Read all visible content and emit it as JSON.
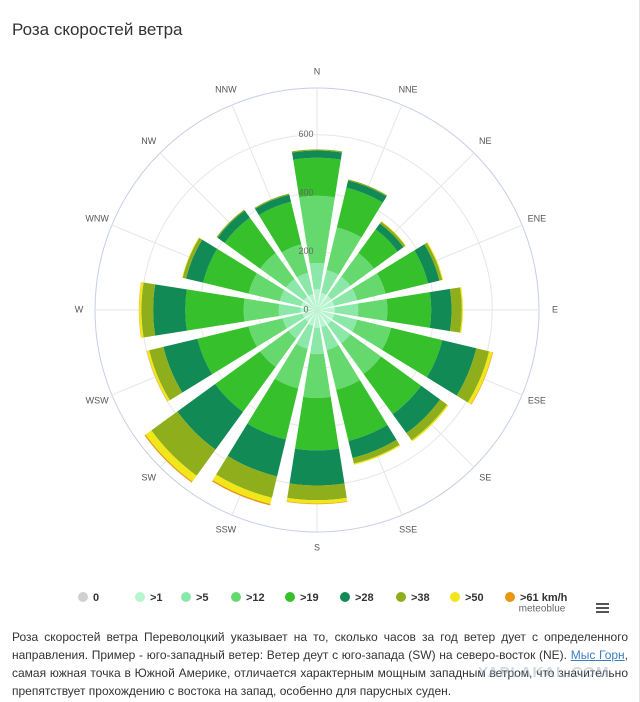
{
  "title": "Роза скоростей ветра",
  "chart_data": {
    "type": "windrose",
    "categories": [
      "N",
      "NNE",
      "NE",
      "ENE",
      "E",
      "ESE",
      "SE",
      "SSE",
      "S",
      "SSW",
      "SW",
      "WSW",
      "W",
      "WNW",
      "NW",
      "NNW"
    ],
    "series": [
      {
        "name": "0",
        "color": "#d0d0d0",
        "values": [
          1,
          1,
          1,
          1,
          1,
          1,
          1,
          1,
          1,
          1,
          1,
          1,
          1,
          1,
          1,
          1
        ]
      },
      {
        "name": ">1",
        "color": "#b6f5cd",
        "values": [
          70,
          60,
          60,
          60,
          60,
          60,
          60,
          60,
          60,
          55,
          50,
          50,
          55,
          55,
          55,
          55
        ]
      },
      {
        "name": ">5",
        "color": "#8ce8a8",
        "values": [
          90,
          80,
          80,
          80,
          80,
          80,
          80,
          80,
          90,
          80,
          70,
          70,
          75,
          75,
          75,
          75
        ]
      },
      {
        "name": ">12",
        "color": "#66d96e",
        "values": [
          230,
          150,
          100,
          100,
          100,
          120,
          130,
          140,
          150,
          140,
          120,
          120,
          120,
          110,
          110,
          100
        ]
      },
      {
        "name": ">19",
        "color": "#36c02c",
        "values": [
          130,
          140,
          100,
          150,
          150,
          180,
          170,
          180,
          180,
          180,
          190,
          180,
          200,
          160,
          150,
          150
        ]
      },
      {
        "name": ">28",
        "color": "#128a56",
        "values": [
          25,
          25,
          25,
          40,
          70,
          120,
          80,
          60,
          120,
          130,
          160,
          120,
          110,
          60,
          30,
          25
        ]
      },
      {
        "name": ">38",
        "color": "#8fae1b",
        "values": [
          4,
          4,
          8,
          10,
          35,
          45,
          30,
          20,
          50,
          75,
          110,
          50,
          40,
          12,
          4,
          4
        ]
      },
      {
        "name": ">50",
        "color": "#f0e61a",
        "values": [
          0,
          0,
          2,
          3,
          4,
          12,
          5,
          4,
          12,
          22,
          25,
          8,
          8,
          2,
          0,
          0
        ]
      },
      {
        "name": ">61 km/h",
        "color": "#e8980f",
        "values": [
          0,
          0,
          0,
          0,
          0,
          2,
          0,
          0,
          2,
          5,
          4,
          1,
          1,
          0,
          0,
          0
        ]
      }
    ],
    "ylim": [
      0,
      760
    ],
    "yticks": [
      0,
      200,
      400,
      600
    ],
    "grid": true
  },
  "credit": "meteoblue",
  "description": {
    "before": "Роза скоростей ветра Переволоцкий указывает на то, сколько часов за год ветер дует с определенного направления. Пример - юго-западный ветер: Ветер деут с юго-запада (SW) на северо-восток (NE). ",
    "link": "Мыс Горн",
    "after": ", самая южная точка в Южной Америке, отличается характерным мощным западным ветром, что значительно препятствует прохождению с востока на запад, особенно для парусных суден."
  },
  "watermark": "YAPLAKAL.COM"
}
